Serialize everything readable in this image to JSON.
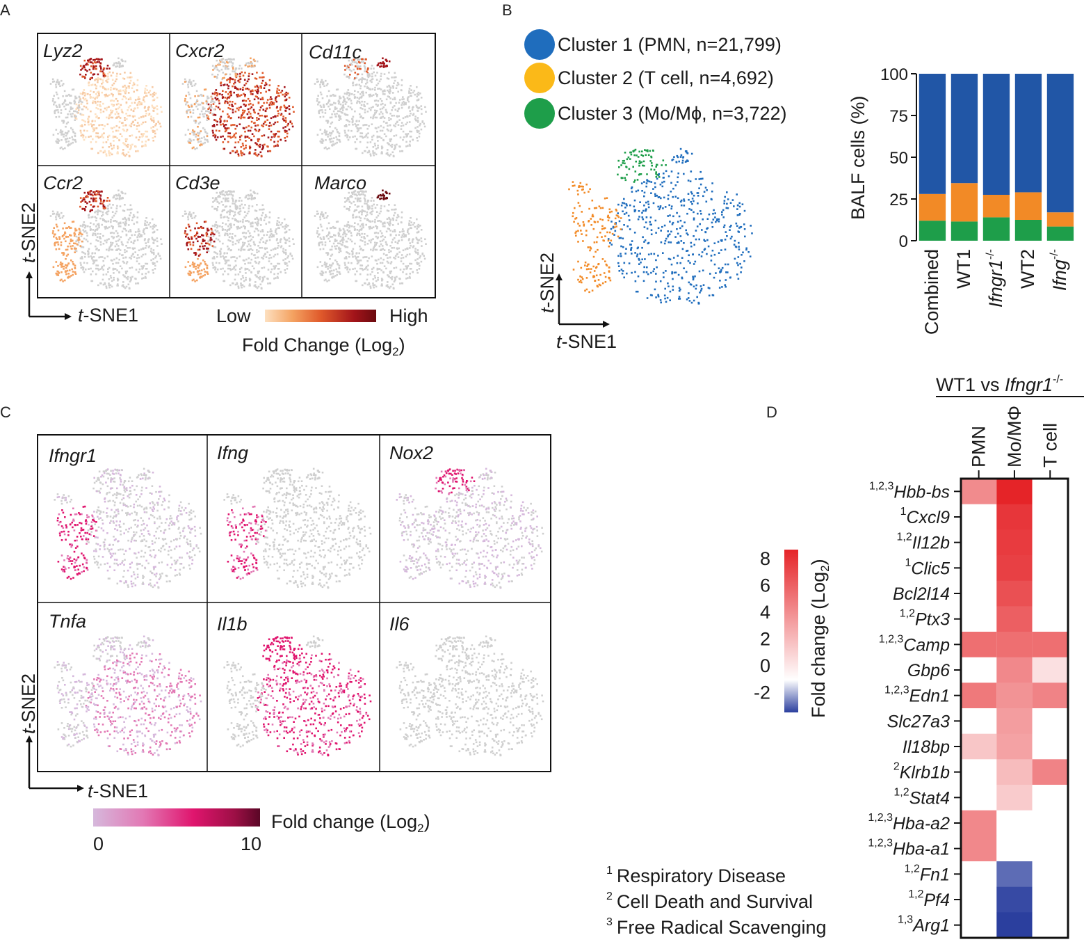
{
  "panel_labels": {
    "a": "A",
    "b": "B",
    "c": "C",
    "d": "D"
  },
  "panel_a": {
    "genes": [
      "Lyz2",
      "Cxcr2",
      "Cd11c",
      "Ccr2",
      "Cd3e",
      "Marco"
    ],
    "axis_y": "t-SNE2",
    "axis_x": "t-SNE1",
    "legend_low": "Low",
    "legend_high": "High",
    "legend_title": "Fold Change (Log2)",
    "gradient_colors": [
      "#fde0c0",
      "#f4a261",
      "#e05a2b",
      "#a3141a",
      "#6b0a0f"
    ]
  },
  "panel_b": {
    "clusters": [
      {
        "label": "Cluster 1 (PMN,  n=21,799)",
        "color": "#1f6dbd"
      },
      {
        "label": "Cluster 2 (T cell, n=4,692)",
        "color": "#fbb918"
      },
      {
        "label": "Cluster 3 (Mo/Mϕ, n=3,722)",
        "color": "#1e9e4a"
      }
    ],
    "axis_y": "t-SNE2",
    "axis_x": "t-SNE1"
  },
  "panel_c": {
    "genes": [
      "Ifngr1",
      "Ifng",
      "Nox2",
      "Tnfa",
      "Il1b",
      "Il6"
    ],
    "axis_y": "t-SNE2",
    "axis_x": "t-SNE1",
    "legend_title": "Fold change (Log2)",
    "legend_min": "0",
    "legend_max": "10",
    "gradient_colors": [
      "#d6b8dc",
      "#e278b4",
      "#e0156e",
      "#9c0f45",
      "#5a0726"
    ]
  },
  "panel_d": {
    "title": "WT1 vs Ifngr1-/-",
    "columns": [
      "PMN",
      "Mo/MΦ",
      "T cell"
    ],
    "rows": [
      {
        "sup": "1,2,3",
        "gene": "Hbb-bs"
      },
      {
        "sup": "1",
        "gene": "Cxcl9"
      },
      {
        "sup": "1,2",
        "gene": "Il12b"
      },
      {
        "sup": "1",
        "gene": "Clic5"
      },
      {
        "sup": "",
        "gene": "Bcl2l14"
      },
      {
        "sup": "1,2",
        "gene": "Ptx3"
      },
      {
        "sup": "1,2,3",
        "gene": "Camp"
      },
      {
        "sup": "",
        "gene": "Gbp6"
      },
      {
        "sup": "1,2,3",
        "gene": "Edn1"
      },
      {
        "sup": "",
        "gene": "Slc27a3"
      },
      {
        "sup": "",
        "gene": "Il18bp"
      },
      {
        "sup": "2",
        "gene": "Klrb1b"
      },
      {
        "sup": "1,2",
        "gene": "Stat4"
      },
      {
        "sup": "1,2,3",
        "gene": "Hba-a2"
      },
      {
        "sup": "1,2,3",
        "gene": "Hba-a1"
      },
      {
        "sup": "1,2",
        "gene": "Fn1"
      },
      {
        "sup": "1,2",
        "gene": "Pf4"
      },
      {
        "sup": "1,3",
        "gene": "Arg1"
      }
    ],
    "values": [
      [
        4.5,
        8.5,
        0
      ],
      [
        0,
        7.8,
        0
      ],
      [
        0,
        7.6,
        0
      ],
      [
        0,
        7.4,
        0
      ],
      [
        0,
        6.8,
        0
      ],
      [
        0,
        6.2,
        0
      ],
      [
        5.6,
        5.6,
        5.6
      ],
      [
        0,
        4.6,
        1.2
      ],
      [
        5.2,
        4.2,
        4.8
      ],
      [
        0,
        3.8,
        0
      ],
      [
        2.2,
        3.6,
        0
      ],
      [
        0,
        2.6,
        4.8
      ],
      [
        0,
        2.0,
        0
      ],
      [
        4.6,
        0,
        0
      ],
      [
        4.6,
        0,
        0
      ],
      [
        0,
        -2.6,
        0
      ],
      [
        0,
        -3.2,
        0
      ],
      [
        0,
        -3.4,
        0
      ]
    ],
    "colorbar_ticks": [
      "8",
      "6",
      "4",
      "2",
      "0",
      "-2"
    ],
    "colorbar_title": "Fold change (Log2)",
    "colors": {
      "high": "#e52428",
      "mid": "#ffffff",
      "low": "#2b3f9e"
    },
    "footnotes": [
      {
        "num": "1",
        "text": "Respiratory Disease"
      },
      {
        "num": "2",
        "text": "Cell Death and Survival"
      },
      {
        "num": "3",
        "text": "Free Radical Scavenging"
      }
    ]
  },
  "chart_data": {
    "type": "bar",
    "title": "",
    "stacked": true,
    "categories": [
      "Combined",
      "WT1",
      "Ifngr1-/-",
      "WT2",
      "Ifng-/-"
    ],
    "series": [
      {
        "name": "Cluster 3 (Mo/Mϕ)",
        "color": "#1e9e4a",
        "values": [
          12,
          11.5,
          14,
          12.5,
          8.5
        ]
      },
      {
        "name": "Cluster 2 (T cell)",
        "color": "#f28a26",
        "values": [
          16,
          23,
          13.5,
          16.5,
          8.5
        ]
      },
      {
        "name": "Cluster 1 (PMN)",
        "color": "#2156a6",
        "values": [
          72,
          65.5,
          72.5,
          71,
          83
        ]
      }
    ],
    "xlabel": "",
    "ylabel": "BALF cells (%)",
    "ylim": [
      0,
      100
    ],
    "yticks": [
      "0",
      "25",
      "50",
      "75",
      "100"
    ]
  }
}
